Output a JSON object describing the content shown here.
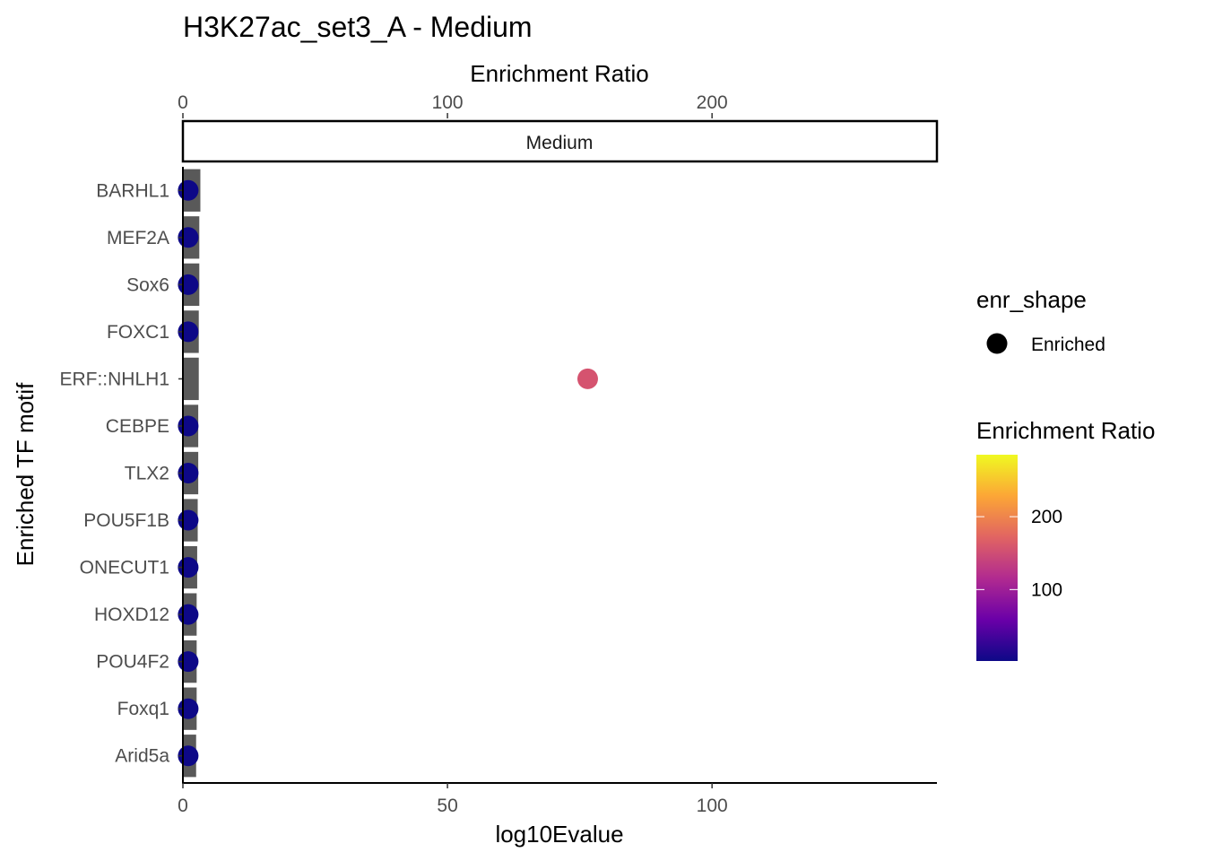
{
  "chart_data": {
    "type": "bar",
    "title": "H3K27ac_set3_A - Medium",
    "facet_label": "Medium",
    "xlabel": "log10Evalue",
    "ylabel": "Enriched TF motif",
    "secondary_xlabel": "Enrichment Ratio",
    "xlim": [
      0,
      142.5
    ],
    "secondary_xlim": [
      0,
      285
    ],
    "x_ticks": [
      0,
      50,
      100
    ],
    "secondary_x_ticks": [
      0,
      100,
      200
    ],
    "categories": [
      "BARHL1",
      "MEF2A",
      "Sox6",
      "FOXC1",
      "ERF::NHLH1",
      "CEBPE",
      "TLX2",
      "POU5F1B",
      "ONECUT1",
      "HOXD12",
      "POU4F2",
      "Foxq1",
      "Arid5a"
    ],
    "bar_values_log10Evalue": [
      3.3,
      3.1,
      3.1,
      3.0,
      3.0,
      2.9,
      2.9,
      2.8,
      2.7,
      2.6,
      2.6,
      2.6,
      2.5
    ],
    "point_values_enrichment_ratio": [
      2,
      2,
      2,
      2,
      153,
      2,
      2,
      2,
      2,
      2,
      2,
      2,
      2
    ],
    "point_colors": [
      "#0d0887",
      "#0d0887",
      "#0d0887",
      "#0d0887",
      "#d5536f",
      "#0d0887",
      "#0d0887",
      "#0d0887",
      "#0d0887",
      "#0d0887",
      "#0d0887",
      "#0d0887",
      "#0d0887"
    ],
    "bar_color": "#595959",
    "legend": {
      "shape_title": "enr_shape",
      "shape_label": "Enriched",
      "color_title": "Enrichment Ratio",
      "color_ticks": [
        100,
        200
      ],
      "color_range": [
        2,
        285
      ],
      "gradient": [
        "#0d0887",
        "#6a00a8",
        "#b12a90",
        "#e16462",
        "#fca636",
        "#f0f921"
      ]
    }
  }
}
